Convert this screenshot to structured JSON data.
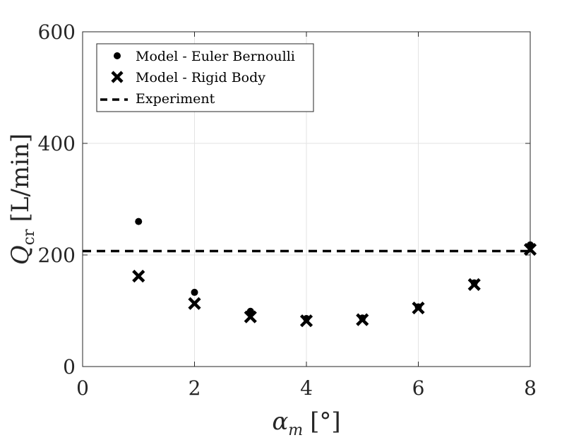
{
  "chart_data": {
    "type": "scatter",
    "xlabel_main": "α",
    "xlabel_sub": "m",
    "xlabel_unit": "[°]",
    "ylabel_main": "Q",
    "ylabel_sub": "cr",
    "ylabel_unit": "[L/min]",
    "xlim": [
      0,
      8
    ],
    "ylim": [
      0,
      600
    ],
    "x_ticks": [
      "0",
      "2",
      "4",
      "6",
      "8"
    ],
    "y_ticks": [
      "0",
      "200",
      "400",
      "600"
    ],
    "grid": true,
    "legend_position": "top-left",
    "series": [
      {
        "name": "Model - Euler Bernoulli",
        "marker": "dot",
        "color": "#000000",
        "x": [
          1,
          2,
          3,
          4,
          5,
          6,
          7,
          8
        ],
        "y": [
          260,
          133,
          99,
          86,
          87,
          107,
          150,
          218
        ]
      },
      {
        "name": "Model - Rigid Body",
        "marker": "x",
        "color": "#000000",
        "x": [
          1,
          2,
          3,
          4,
          5,
          6,
          7,
          8
        ],
        "y": [
          162,
          113,
          89,
          82,
          84,
          105,
          147,
          210
        ]
      },
      {
        "name": "Experiment",
        "marker": "dashed-line",
        "color": "#000000",
        "y": 207
      }
    ]
  }
}
